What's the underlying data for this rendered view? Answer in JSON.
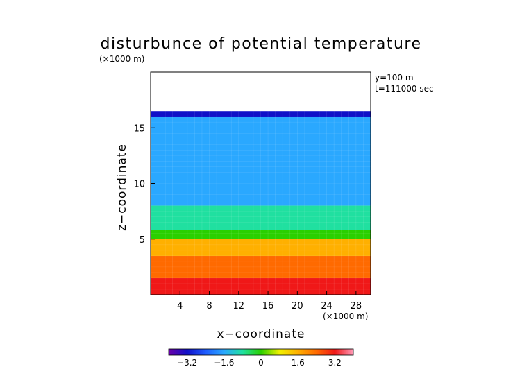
{
  "chart_data": {
    "type": "heatmap",
    "title": "disturbunce of potential temperature",
    "unit_label": "(×1000 m)",
    "xlabel": "x−coordinate",
    "ylabel": "z−coordinate",
    "x_unit": "(×1000 m)",
    "xlim": [
      0,
      30
    ],
    "ylim": [
      0,
      20
    ],
    "x_ticks": [
      4,
      8,
      12,
      16,
      20,
      24,
      28
    ],
    "y_ticks": [
      5,
      10,
      15
    ],
    "annotations": [
      "y=100 m",
      "t=111000 sec"
    ],
    "data_top_z": 16.5,
    "description_bands": [
      {
        "z_from": 0,
        "z_to": 1.5,
        "value": 3.0
      },
      {
        "z_from": 1.5,
        "z_to": 3.5,
        "value": 2.3
      },
      {
        "z_from": 3.5,
        "z_to": 5.0,
        "value": 1.6
      },
      {
        "z_from": 5.0,
        "z_to": 5.8,
        "value": 0.2
      },
      {
        "z_from": 5.8,
        "z_to": 8.0,
        "value": -1.2
      },
      {
        "z_from": 8.0,
        "z_to": 16.0,
        "value": -2.0
      },
      {
        "z_from": 16.0,
        "z_to": 16.5,
        "value": -3.0
      }
    ],
    "colorbar": {
      "min": -4.0,
      "max": 4.0,
      "ticks": [
        "−3.2",
        "−1.6",
        "0",
        "1.6",
        "3.2"
      ],
      "tick_values": [
        -3.2,
        -1.6,
        0,
        1.6,
        3.2
      ]
    },
    "colors": [
      "#6a00a8",
      "#1010c8",
      "#1e5cff",
      "#2aa8ff",
      "#20e0a0",
      "#2ad000",
      "#f0f000",
      "#ffb000",
      "#ff6a00",
      "#f01818",
      "#ff9ab8"
    ]
  }
}
